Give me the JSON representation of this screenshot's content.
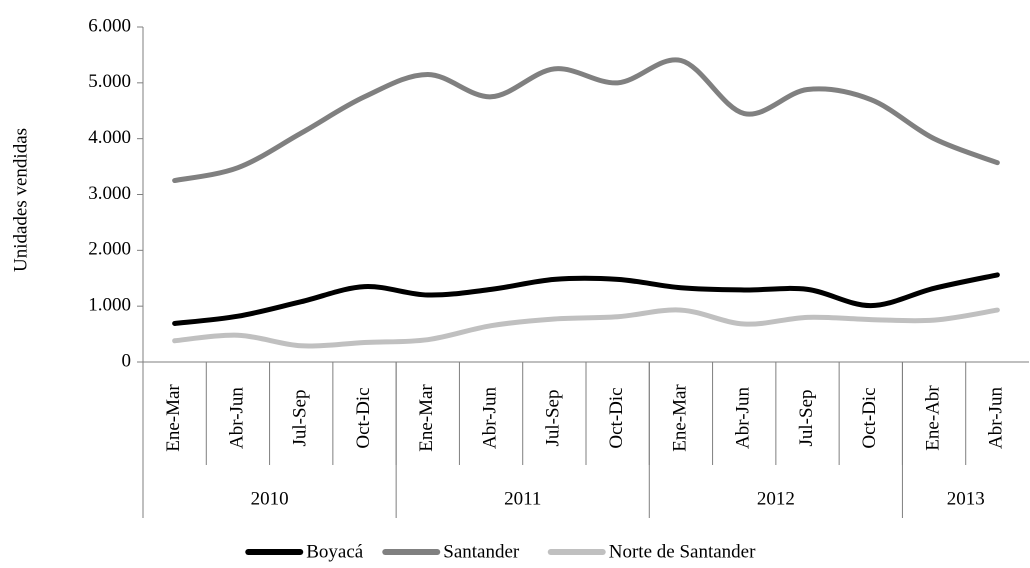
{
  "chart_data": {
    "type": "line",
    "y_label": "Unidades vendidas",
    "categories": [
      "Ene-Mar",
      "Abr-Jun",
      "Jul-Sep",
      "Oct-Dic",
      "Ene-Mar",
      "Abr-Jun",
      "Jul-Sep",
      "Oct-Dic",
      "Ene-Mar",
      "Abr-Jun",
      "Jul-Sep",
      "Oct-Dic",
      "Ene-Abr",
      "Abr-Jun"
    ],
    "groups": [
      {
        "label": "2010",
        "count": 4
      },
      {
        "label": "2011",
        "count": 4
      },
      {
        "label": "2012",
        "count": 4
      },
      {
        "label": "2013",
        "count": 2
      }
    ],
    "series": [
      {
        "name": "Boyacá",
        "color": "#000000",
        "values": [
          690,
          820,
          1080,
          1350,
          1200,
          1300,
          1480,
          1480,
          1330,
          1290,
          1300,
          1010,
          1320,
          1560
        ]
      },
      {
        "name": "Santander",
        "color": "#808080",
        "values": [
          3250,
          3480,
          4100,
          4750,
          5150,
          4750,
          5250,
          5000,
          5400,
          4450,
          4880,
          4700,
          4000,
          3570
        ]
      },
      {
        "name": "Norte de Santander",
        "color": "#c0c0c0",
        "values": [
          380,
          480,
          290,
          350,
          400,
          650,
          770,
          810,
          930,
          680,
          800,
          760,
          750,
          930
        ]
      }
    ],
    "ylim": [
      0,
      6000
    ],
    "yticks": [
      0,
      {
        "value": 1000,
        "label": "1.000"
      },
      {
        "value": 2000,
        "label": "2.000"
      },
      {
        "value": 3000,
        "label": "3.000"
      },
      {
        "value": 4000,
        "label": "4.000"
      },
      {
        "value": 5000,
        "label": "5.000"
      },
      {
        "value": 6000,
        "label": "6.000"
      }
    ],
    "legend": "bottom",
    "grid": false
  }
}
